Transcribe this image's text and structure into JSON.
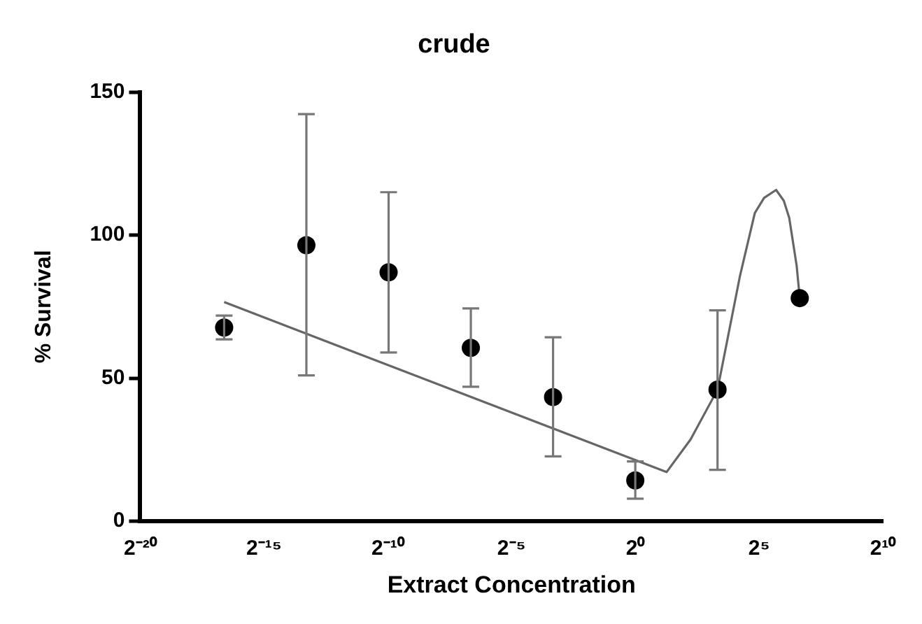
{
  "chart_data": {
    "type": "scatter",
    "title": "crude",
    "xlabel": "Extract Concentration",
    "ylabel": "% Survival",
    "log": "x",
    "xlim": [
      9.5367431640625e-07,
      1024
    ],
    "xticks": [
      {
        "value": 9.5367431640625e-07,
        "label": "2⁻²⁰"
      },
      {
        "value": 3.0517578125e-05,
        "label": "2⁻¹⁵"
      },
      {
        "value": 0.0009765625,
        "label": "2⁻¹⁰"
      },
      {
        "value": 0.03125,
        "label": "2⁻⁵"
      },
      {
        "value": 1,
        "label": "2⁰"
      },
      {
        "value": 32,
        "label": "2⁵"
      },
      {
        "value": 1024,
        "label": "2¹⁰"
      }
    ],
    "ylim": [
      0,
      150
    ],
    "yticks": [
      0,
      50,
      100,
      150
    ],
    "grid": false,
    "legend": false,
    "series": [
      {
        "color": "#000000",
        "marker": "circle",
        "x": [
          1e-05,
          0.0001,
          0.001,
          0.01,
          0.1,
          1,
          10,
          100
        ],
        "values": [
          67.7,
          96.5,
          87,
          60.6,
          43.4,
          14.3,
          46,
          78
        ],
        "errors": [
          [
            63.6,
            71.9
          ],
          [
            51,
            142.3
          ],
          [
            59,
            115
          ],
          [
            47,
            74.4
          ],
          [
            22.7,
            64.3
          ],
          [
            7.9,
            20.9
          ],
          [
            18,
            73.7
          ],
          null
        ]
      },
      {
        "type": "line",
        "color": "#666666",
        "marker": "none",
        "line_style": "solid",
        "x": [
          1e-05,
          2.4,
          4.7,
          10,
          18.8,
          28.4,
          36.8,
          51.6,
          64,
          74.5,
          91.8,
          100
        ],
        "values": [
          76.6,
          17.2,
          28.6,
          46,
          85.9,
          107.7,
          113,
          115.8,
          112,
          106,
          89.2,
          78
        ]
      }
    ]
  }
}
